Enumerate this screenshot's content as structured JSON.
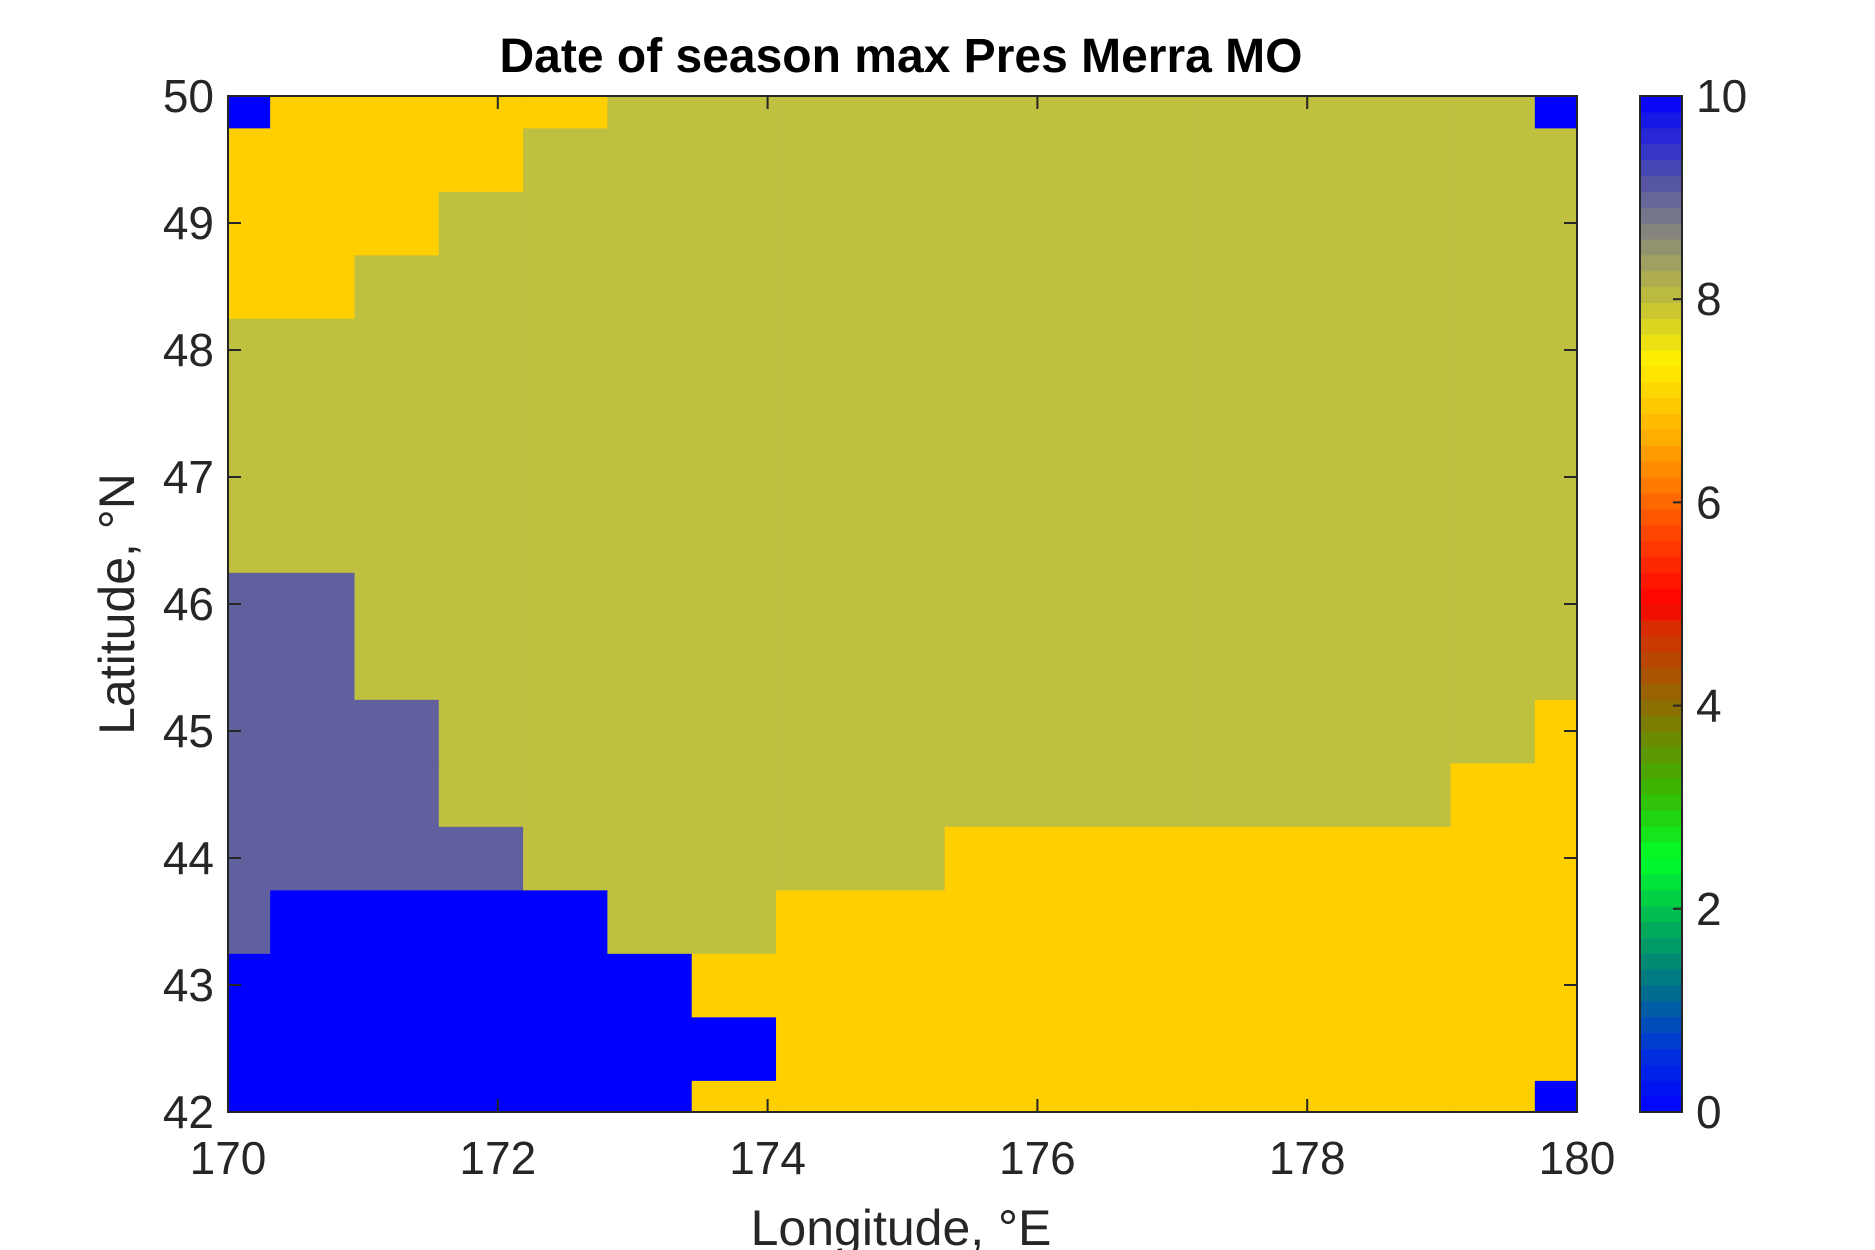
{
  "chart_data": {
    "type": "heatmap",
    "title": "Date of season max Pres Merra MO",
    "xlabel": "Longitude, °E",
    "ylabel": "Latitude, °N",
    "xlim": [
      170,
      180
    ],
    "ylim": [
      42,
      50
    ],
    "x_ticks": [
      "170",
      "172",
      "174",
      "176",
      "178",
      "180"
    ],
    "y_ticks": [
      "42",
      "43",
      "44",
      "45",
      "46",
      "47",
      "48",
      "49",
      "50"
    ],
    "x_cell_centers": [
      170.0,
      170.625,
      171.25,
      171.875,
      172.5,
      173.125,
      173.75,
      174.375,
      175.0,
      175.625,
      176.25,
      176.875,
      177.5,
      178.125,
      178.75,
      179.375,
      180.0
    ],
    "y_cell_centers": [
      42.0,
      42.5,
      43.0,
      43.5,
      44.0,
      44.5,
      45.0,
      45.5,
      46.0,
      46.5,
      47.0,
      47.5,
      48.0,
      48.5,
      49.0,
      49.5,
      50.0
    ],
    "values": [
      [
        0,
        0,
        0,
        0,
        0,
        0,
        7,
        7,
        7,
        7,
        7,
        7,
        7,
        7,
        7,
        7,
        0
      ],
      [
        0,
        0,
        0,
        0,
        0,
        0,
        0,
        7,
        7,
        7,
        7,
        7,
        7,
        7,
        7,
        7,
        7
      ],
      [
        0,
        0,
        0,
        0,
        0,
        0,
        7,
        7,
        7,
        7,
        7,
        7,
        7,
        7,
        7,
        7,
        7
      ],
      [
        9,
        0,
        0,
        0,
        0,
        8,
        8,
        7,
        7,
        7,
        7,
        7,
        7,
        7,
        7,
        7,
        7
      ],
      [
        9,
        9,
        9,
        9,
        8,
        8,
        8,
        8,
        8,
        7,
        7,
        7,
        7,
        7,
        7,
        7,
        7
      ],
      [
        9,
        9,
        9,
        8,
        8,
        8,
        8,
        8,
        8,
        8,
        8,
        8,
        8,
        8,
        8,
        7,
        7
      ],
      [
        9,
        9,
        9,
        8,
        8,
        8,
        8,
        8,
        8,
        8,
        8,
        8,
        8,
        8,
        8,
        8,
        7
      ],
      [
        9,
        9,
        8,
        8,
        8,
        8,
        8,
        8,
        8,
        8,
        8,
        8,
        8,
        8,
        8,
        8,
        8
      ],
      [
        9,
        9,
        8,
        8,
        8,
        8,
        8,
        8,
        8,
        8,
        8,
        8,
        8,
        8,
        8,
        8,
        8
      ],
      [
        8,
        8,
        8,
        8,
        8,
        8,
        8,
        8,
        8,
        8,
        8,
        8,
        8,
        8,
        8,
        8,
        8
      ],
      [
        8,
        8,
        8,
        8,
        8,
        8,
        8,
        8,
        8,
        8,
        8,
        8,
        8,
        8,
        8,
        8,
        8
      ],
      [
        8,
        8,
        8,
        8,
        8,
        8,
        8,
        8,
        8,
        8,
        8,
        8,
        8,
        8,
        8,
        8,
        8
      ],
      [
        8,
        8,
        8,
        8,
        8,
        8,
        8,
        8,
        8,
        8,
        8,
        8,
        8,
        8,
        8,
        8,
        8
      ],
      [
        7,
        7,
        8,
        8,
        8,
        8,
        8,
        8,
        8,
        8,
        8,
        8,
        8,
        8,
        8,
        8,
        8
      ],
      [
        7,
        7,
        7,
        8,
        8,
        8,
        8,
        8,
        8,
        8,
        8,
        8,
        8,
        8,
        8,
        8,
        8
      ],
      [
        7,
        7,
        7,
        7,
        8,
        8,
        8,
        8,
        8,
        8,
        8,
        8,
        8,
        8,
        8,
        8,
        8
      ],
      [
        0,
        7,
        7,
        7,
        7,
        8,
        8,
        8,
        8,
        8,
        8,
        8,
        8,
        8,
        8,
        8,
        0
      ]
    ],
    "colorbar": {
      "range": [
        0,
        10
      ],
      "ticks": [
        "0",
        "2",
        "4",
        "6",
        "8",
        "10"
      ]
    },
    "value_colors": {
      "0": "#0000ff",
      "7": "#ffcf00",
      "8": "#bfbf40",
      "9": "#60609f"
    },
    "grid": false
  }
}
